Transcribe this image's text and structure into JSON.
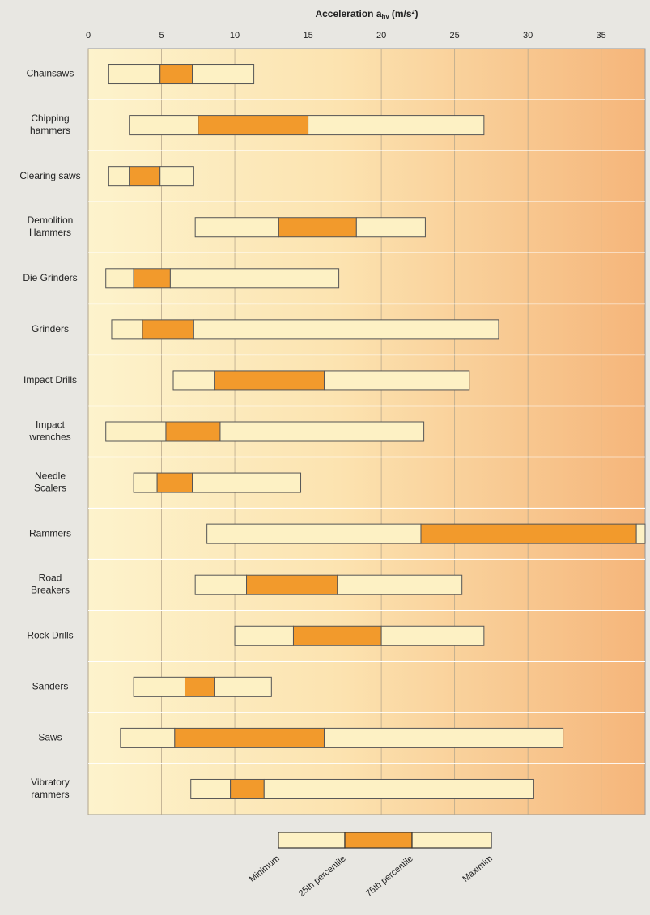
{
  "chart_data": {
    "type": "range_bar",
    "x_label": {
      "text": "Acceleration a",
      "subscript": "hv",
      "unit": "(m/s²)"
    },
    "categories": [
      "Chainsaws",
      "Chipping\nhammers",
      "Clearing saws",
      "Demolition\nHammers",
      "Die Grinders",
      "Grinders",
      "Impact Drills",
      "Impact\nwrenches",
      "Needle\nScalers",
      "Rammers",
      "Road\nBreakers",
      "Rock Drills",
      "Sanders",
      "Saws",
      "Vibratory\nrammers"
    ],
    "series": [
      {
        "name": "Minimum",
        "color": "#fdf1c4",
        "values": [
          1.4,
          2.8,
          1.4,
          7.3,
          1.2,
          1.6,
          5.8,
          1.2,
          3.1,
          8.1,
          7.3,
          10,
          3.1,
          2.2,
          7
        ]
      },
      {
        "name": "25th percentile",
        "color": "#f29a2c",
        "values": [
          4.9,
          7.5,
          2.8,
          13,
          3.1,
          3.7,
          8.6,
          5.3,
          4.7,
          22.7,
          10.8,
          14,
          6.6,
          5.9,
          9.7
        ]
      },
      {
        "name": "75th percentile",
        "color": "#fdf1c4",
        "values": [
          7.1,
          15,
          4.9,
          18.3,
          5.6,
          7.2,
          16.1,
          9,
          7.1,
          37.4,
          17,
          20,
          8.6,
          16.1,
          12
        ]
      },
      {
        "name": "Maximim",
        "values": [
          11.3,
          27,
          7.2,
          23,
          17.1,
          28,
          26,
          22.9,
          14.5,
          38,
          25.5,
          27,
          12.5,
          32.4,
          30.4
        ]
      }
    ],
    "xlim": [
      0,
      38
    ],
    "xticks": [
      0,
      5,
      10,
      15,
      20,
      25,
      30,
      35
    ],
    "grid": true
  }
}
